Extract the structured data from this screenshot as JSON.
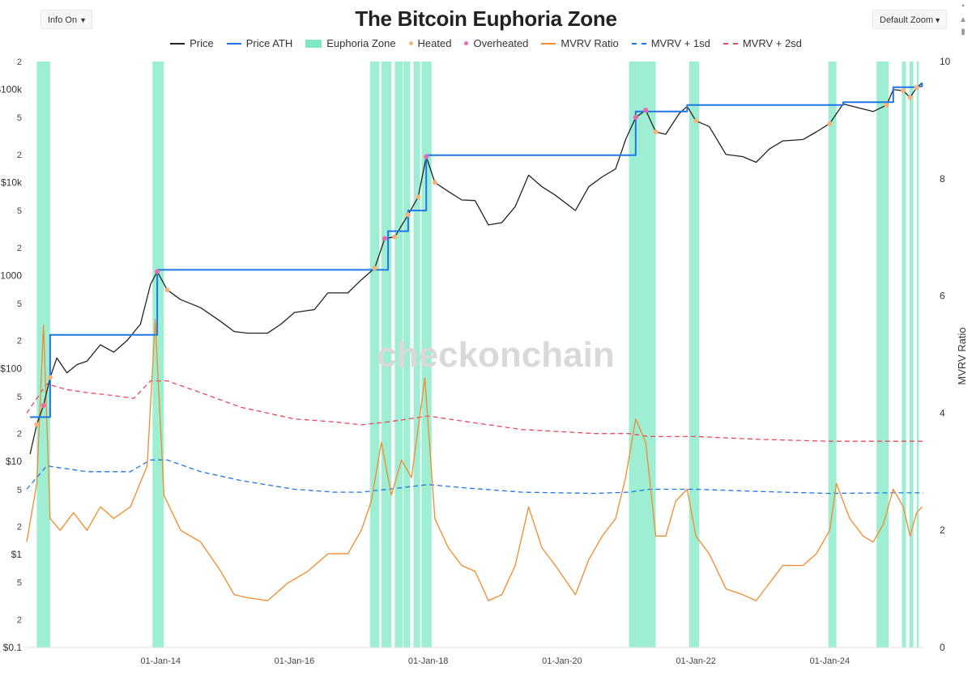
{
  "controls": {
    "info_label": "Info On",
    "zoom_label": "Default Zoom",
    "dropdown_arrow": "▼"
  },
  "watermark": "checkonchain",
  "chart_data": {
    "type": "line",
    "title": "The Bitcoin Euphoria Zone",
    "ylabel_right": "MVRV Ratio",
    "y_left": {
      "scale": "log",
      "range": [
        0.1,
        200000
      ],
      "tick_labels": [
        {
          "v": 0.1,
          "t": "$0.1"
        },
        {
          "v": 0.2,
          "t": "2"
        },
        {
          "v": 0.5,
          "t": "5"
        },
        {
          "v": 1,
          "t": "$1"
        },
        {
          "v": 2,
          "t": "2"
        },
        {
          "v": 5,
          "t": "5"
        },
        {
          "v": 10,
          "t": "$10"
        },
        {
          "v": 20,
          "t": "2"
        },
        {
          "v": 50,
          "t": "5"
        },
        {
          "v": 100,
          "t": "$100"
        },
        {
          "v": 200,
          "t": "2"
        },
        {
          "v": 500,
          "t": "5"
        },
        {
          "v": 1000,
          "t": "$1000"
        },
        {
          "v": 2000,
          "t": "2"
        },
        {
          "v": 5000,
          "t": "5"
        },
        {
          "v": 10000,
          "t": "$10k"
        },
        {
          "v": 20000,
          "t": "2"
        },
        {
          "v": 50000,
          "t": "5"
        },
        {
          "v": 100000,
          "t": "$100k"
        },
        {
          "v": 200000,
          "t": "2"
        }
      ]
    },
    "y_right": {
      "range": [
        0,
        10
      ],
      "ticks": [
        0,
        2,
        4,
        6,
        8,
        10
      ]
    },
    "x": {
      "range": [
        2012.0,
        2025.4
      ],
      "tick_labels": [
        {
          "v": 2014.0,
          "t": "01-Jan-14"
        },
        {
          "v": 2016.0,
          "t": "01-Jan-16"
        },
        {
          "v": 2018.0,
          "t": "01-Jan-18"
        },
        {
          "v": 2020.0,
          "t": "01-Jan-20"
        },
        {
          "v": 2022.0,
          "t": "01-Jan-22"
        },
        {
          "v": 2024.0,
          "t": "01-Jan-24"
        }
      ]
    },
    "legend": [
      {
        "name": "Price",
        "kind": "line",
        "color": "#222222"
      },
      {
        "name": "Price ATH",
        "kind": "line",
        "color": "#1f77e6"
      },
      {
        "name": "Euphoria Zone",
        "kind": "box",
        "color": "#7ee8c4"
      },
      {
        "name": "Heated",
        "kind": "dot",
        "color": "#f5b27a"
      },
      {
        "name": "Overheated",
        "kind": "dot",
        "color": "#e86ab4"
      },
      {
        "name": "MVRV Ratio",
        "kind": "line",
        "color": "#f28a2e"
      },
      {
        "name": "MVRV + 1sd",
        "kind": "dash",
        "color": "#1f77e6"
      },
      {
        "name": "MVRV + 2sd",
        "kind": "dash",
        "color": "#e84a5f"
      }
    ],
    "euphoria_zones": [
      [
        2012.15,
        2012.35
      ],
      [
        2013.88,
        2014.05
      ],
      [
        2017.13,
        2017.27
      ],
      [
        2017.3,
        2017.45
      ],
      [
        2017.5,
        2017.62
      ],
      [
        2017.63,
        2017.73
      ],
      [
        2017.78,
        2017.88
      ],
      [
        2017.9,
        2018.05
      ],
      [
        2021.0,
        2021.4
      ],
      [
        2021.9,
        2022.05
      ],
      [
        2023.98,
        2024.1
      ],
      [
        2024.7,
        2024.88
      ],
      [
        2025.08,
        2025.14
      ],
      [
        2025.19,
        2025.25
      ],
      [
        2025.3,
        2025.33
      ]
    ],
    "series": [
      {
        "name": "Price",
        "color": "#222222",
        "axis": "left",
        "points": [
          [
            2012.05,
            12
          ],
          [
            2012.15,
            25
          ],
          [
            2012.25,
            40
          ],
          [
            2012.35,
            80
          ],
          [
            2012.45,
            130
          ],
          [
            2012.6,
            90
          ],
          [
            2012.75,
            110
          ],
          [
            2012.9,
            120
          ],
          [
            2013.1,
            180
          ],
          [
            2013.3,
            150
          ],
          [
            2013.5,
            200
          ],
          [
            2013.7,
            300
          ],
          [
            2013.85,
            800
          ],
          [
            2013.95,
            1100
          ],
          [
            2014.1,
            700
          ],
          [
            2014.3,
            550
          ],
          [
            2014.6,
            450
          ],
          [
            2014.9,
            320
          ],
          [
            2015.1,
            250
          ],
          [
            2015.3,
            240
          ],
          [
            2015.6,
            240
          ],
          [
            2015.8,
            300
          ],
          [
            2016.0,
            400
          ],
          [
            2016.3,
            430
          ],
          [
            2016.5,
            650
          ],
          [
            2016.8,
            650
          ],
          [
            2017.0,
            900
          ],
          [
            2017.2,
            1200
          ],
          [
            2017.35,
            2500
          ],
          [
            2017.5,
            2600
          ],
          [
            2017.7,
            4500
          ],
          [
            2017.85,
            7000
          ],
          [
            2017.97,
            19000
          ],
          [
            2018.1,
            10000
          ],
          [
            2018.3,
            8000
          ],
          [
            2018.5,
            6500
          ],
          [
            2018.7,
            6400
          ],
          [
            2018.9,
            3500
          ],
          [
            2019.1,
            3700
          ],
          [
            2019.3,
            5500
          ],
          [
            2019.5,
            12000
          ],
          [
            2019.7,
            9000
          ],
          [
            2019.9,
            7300
          ],
          [
            2020.2,
            5000
          ],
          [
            2020.4,
            9000
          ],
          [
            2020.6,
            11500
          ],
          [
            2020.8,
            14000
          ],
          [
            2020.95,
            29000
          ],
          [
            2021.1,
            50000
          ],
          [
            2021.25,
            60000
          ],
          [
            2021.4,
            35000
          ],
          [
            2021.55,
            33000
          ],
          [
            2021.75,
            55000
          ],
          [
            2021.87,
            66000
          ],
          [
            2022.0,
            46000
          ],
          [
            2022.2,
            40000
          ],
          [
            2022.45,
            20000
          ],
          [
            2022.7,
            19000
          ],
          [
            2022.9,
            16500
          ],
          [
            2023.1,
            23000
          ],
          [
            2023.3,
            28000
          ],
          [
            2023.6,
            29000
          ],
          [
            2023.8,
            35000
          ],
          [
            2024.0,
            43000
          ],
          [
            2024.2,
            70000
          ],
          [
            2024.45,
            63000
          ],
          [
            2024.65,
            58000
          ],
          [
            2024.85,
            68000
          ],
          [
            2024.95,
            100000
          ],
          [
            2025.1,
            97000
          ],
          [
            2025.2,
            82000
          ],
          [
            2025.3,
            105000
          ],
          [
            2025.38,
            118000
          ]
        ]
      },
      {
        "name": "Price ATH",
        "color": "#1f77e6",
        "axis": "left",
        "points": [
          [
            2012.05,
            30
          ],
          [
            2012.2,
            30
          ],
          [
            2012.35,
            230
          ],
          [
            2013.85,
            230
          ],
          [
            2013.95,
            1150
          ],
          [
            2017.15,
            1150
          ],
          [
            2017.4,
            3000
          ],
          [
            2017.7,
            5000
          ],
          [
            2017.97,
            19700
          ],
          [
            2020.95,
            19700
          ],
          [
            2021.1,
            58000
          ],
          [
            2021.87,
            68000
          ],
          [
            2024.2,
            73000
          ],
          [
            2024.95,
            106000
          ],
          [
            2025.3,
            108000
          ],
          [
            2025.38,
            118000
          ]
        ]
      },
      {
        "name": "MVRV Ratio",
        "color": "#f28a2e",
        "axis": "right",
        "points": [
          [
            2012.0,
            1.8
          ],
          [
            2012.15,
            2.8
          ],
          [
            2012.25,
            5.5
          ],
          [
            2012.35,
            2.2
          ],
          [
            2012.5,
            2.0
          ],
          [
            2012.7,
            2.3
          ],
          [
            2012.9,
            2.0
          ],
          [
            2013.1,
            2.4
          ],
          [
            2013.3,
            2.2
          ],
          [
            2013.55,
            2.4
          ],
          [
            2013.8,
            3.1
          ],
          [
            2013.92,
            5.6
          ],
          [
            2014.05,
            2.6
          ],
          [
            2014.3,
            2.0
          ],
          [
            2014.6,
            1.8
          ],
          [
            2014.9,
            1.3
          ],
          [
            2015.1,
            0.9
          ],
          [
            2015.3,
            0.85
          ],
          [
            2015.6,
            0.8
          ],
          [
            2015.9,
            1.1
          ],
          [
            2016.2,
            1.3
          ],
          [
            2016.5,
            1.6
          ],
          [
            2016.8,
            1.6
          ],
          [
            2017.0,
            2.0
          ],
          [
            2017.15,
            2.5
          ],
          [
            2017.3,
            3.5
          ],
          [
            2017.45,
            2.6
          ],
          [
            2017.6,
            3.2
          ],
          [
            2017.75,
            2.9
          ],
          [
            2017.95,
            4.6
          ],
          [
            2018.1,
            2.2
          ],
          [
            2018.3,
            1.7
          ],
          [
            2018.5,
            1.4
          ],
          [
            2018.7,
            1.3
          ],
          [
            2018.9,
            0.8
          ],
          [
            2019.1,
            0.9
          ],
          [
            2019.3,
            1.4
          ],
          [
            2019.5,
            2.4
          ],
          [
            2019.7,
            1.7
          ],
          [
            2019.9,
            1.4
          ],
          [
            2020.2,
            0.9
          ],
          [
            2020.4,
            1.5
          ],
          [
            2020.6,
            1.9
          ],
          [
            2020.8,
            2.2
          ],
          [
            2020.95,
            2.9
          ],
          [
            2021.1,
            3.9
          ],
          [
            2021.25,
            3.5
          ],
          [
            2021.4,
            1.9
          ],
          [
            2021.55,
            1.9
          ],
          [
            2021.7,
            2.5
          ],
          [
            2021.87,
            2.7
          ],
          [
            2022.0,
            1.9
          ],
          [
            2022.2,
            1.6
          ],
          [
            2022.45,
            1.0
          ],
          [
            2022.7,
            0.9
          ],
          [
            2022.9,
            0.8
          ],
          [
            2023.1,
            1.1
          ],
          [
            2023.3,
            1.4
          ],
          [
            2023.6,
            1.4
          ],
          [
            2023.8,
            1.6
          ],
          [
            2024.0,
            2.0
          ],
          [
            2024.1,
            2.8
          ],
          [
            2024.3,
            2.2
          ],
          [
            2024.5,
            1.9
          ],
          [
            2024.65,
            1.8
          ],
          [
            2024.8,
            2.1
          ],
          [
            2024.95,
            2.7
          ],
          [
            2025.1,
            2.4
          ],
          [
            2025.2,
            1.9
          ],
          [
            2025.3,
            2.3
          ],
          [
            2025.38,
            2.4
          ]
        ]
      },
      {
        "name": "MVRV + 1sd",
        "color": "#1f77e6",
        "axis": "right",
        "dashed": true,
        "points": [
          [
            2012.0,
            2.7
          ],
          [
            2012.3,
            3.1
          ],
          [
            2012.6,
            3.05
          ],
          [
            2012.9,
            3.0
          ],
          [
            2013.2,
            3.0
          ],
          [
            2013.55,
            3.0
          ],
          [
            2013.85,
            3.2
          ],
          [
            2014.1,
            3.2
          ],
          [
            2014.6,
            3.0
          ],
          [
            2015.2,
            2.85
          ],
          [
            2016.0,
            2.7
          ],
          [
            2016.6,
            2.65
          ],
          [
            2017.0,
            2.65
          ],
          [
            2017.4,
            2.7
          ],
          [
            2018.0,
            2.78
          ],
          [
            2018.6,
            2.72
          ],
          [
            2019.4,
            2.65
          ],
          [
            2020.5,
            2.63
          ],
          [
            2021.0,
            2.65
          ],
          [
            2021.3,
            2.7
          ],
          [
            2022.0,
            2.7
          ],
          [
            2023.0,
            2.66
          ],
          [
            2024.0,
            2.63
          ],
          [
            2024.9,
            2.64
          ],
          [
            2025.4,
            2.64
          ]
        ]
      },
      {
        "name": "MVRV + 2sd",
        "color": "#e84a5f",
        "axis": "right",
        "dashed": true,
        "points": [
          [
            2012.0,
            4.0
          ],
          [
            2012.3,
            4.5
          ],
          [
            2012.6,
            4.4
          ],
          [
            2012.9,
            4.35
          ],
          [
            2013.3,
            4.3
          ],
          [
            2013.6,
            4.25
          ],
          [
            2013.85,
            4.55
          ],
          [
            2014.1,
            4.55
          ],
          [
            2014.6,
            4.35
          ],
          [
            2015.2,
            4.1
          ],
          [
            2016.0,
            3.9
          ],
          [
            2016.6,
            3.85
          ],
          [
            2017.0,
            3.8
          ],
          [
            2017.4,
            3.85
          ],
          [
            2018.0,
            3.95
          ],
          [
            2018.6,
            3.85
          ],
          [
            2019.4,
            3.72
          ],
          [
            2020.5,
            3.65
          ],
          [
            2021.0,
            3.65
          ],
          [
            2021.3,
            3.6
          ],
          [
            2022.0,
            3.6
          ],
          [
            2023.0,
            3.55
          ],
          [
            2024.0,
            3.52
          ],
          [
            2024.9,
            3.52
          ],
          [
            2025.4,
            3.52
          ]
        ]
      }
    ]
  }
}
